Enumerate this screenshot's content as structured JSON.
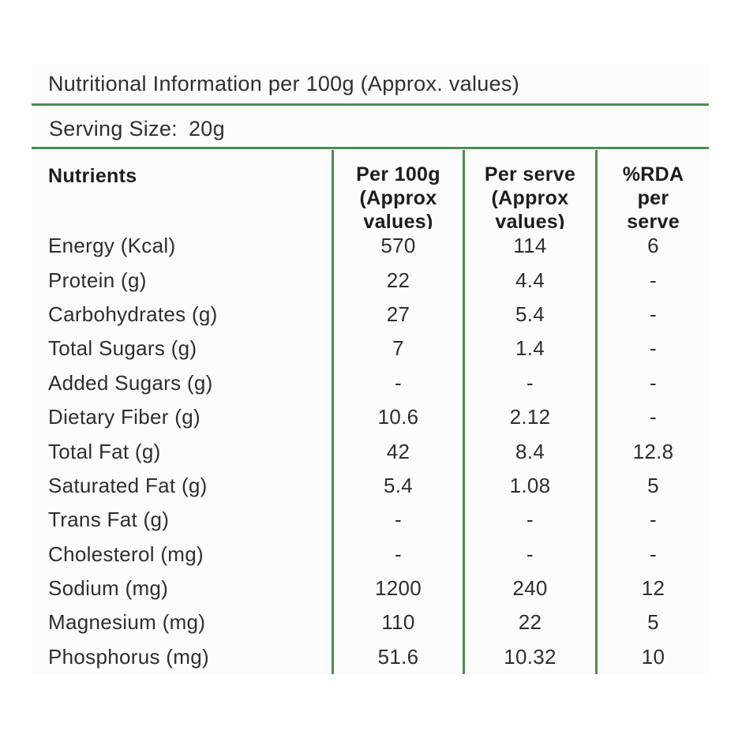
{
  "colors": {
    "accent_green": "#4e8c52",
    "text": "#2f2f2f",
    "header_text": "#1d1d1d",
    "panel_background": "#fcfcfc"
  },
  "title": "Nutritional Information per 100g (Approx. values)",
  "serving": {
    "label": "Serving Size:",
    "value": "20g"
  },
  "table": {
    "headers": {
      "nutrients": "Nutrients",
      "per_100g": "Per 100g\n(Approx\nvalues)",
      "per_serve": "Per serve\n(Approx\nvalues)",
      "rda": "%RDA\nper\nserve"
    },
    "rows": [
      {
        "nutrient": "Energy (Kcal)",
        "per_100g": "570",
        "per_serve": "114",
        "rda": "6"
      },
      {
        "nutrient": "Protein (g)",
        "per_100g": "22",
        "per_serve": "4.4",
        "rda": "-"
      },
      {
        "nutrient": "Carbohydrates (g)",
        "per_100g": "27",
        "per_serve": "5.4",
        "rda": "-"
      },
      {
        "nutrient": "Total Sugars (g)",
        "per_100g": "7",
        "per_serve": "1.4",
        "rda": "-"
      },
      {
        "nutrient": "Added Sugars (g)",
        "per_100g": "-",
        "per_serve": "-",
        "rda": "-"
      },
      {
        "nutrient": "Dietary Fiber (g)",
        "per_100g": "10.6",
        "per_serve": "2.12",
        "rda": "-"
      },
      {
        "nutrient": "Total Fat (g)",
        "per_100g": "42",
        "per_serve": "8.4",
        "rda": "12.8"
      },
      {
        "nutrient": "Saturated Fat (g)",
        "per_100g": "5.4",
        "per_serve": "1.08",
        "rda": "5"
      },
      {
        "nutrient": "Trans Fat (g)",
        "per_100g": "-",
        "per_serve": "-",
        "rda": "-"
      },
      {
        "nutrient": "Cholesterol (mg)",
        "per_100g": "-",
        "per_serve": "-",
        "rda": "-"
      },
      {
        "nutrient": "Sodium (mg)",
        "per_100g": "1200",
        "per_serve": "240",
        "rda": "12"
      },
      {
        "nutrient": "Magnesium (mg)",
        "per_100g": "110",
        "per_serve": "22",
        "rda": "5"
      },
      {
        "nutrient": "Phosphorus (mg)",
        "per_100g": "51.6",
        "per_serve": "10.32",
        "rda": "10"
      }
    ]
  }
}
